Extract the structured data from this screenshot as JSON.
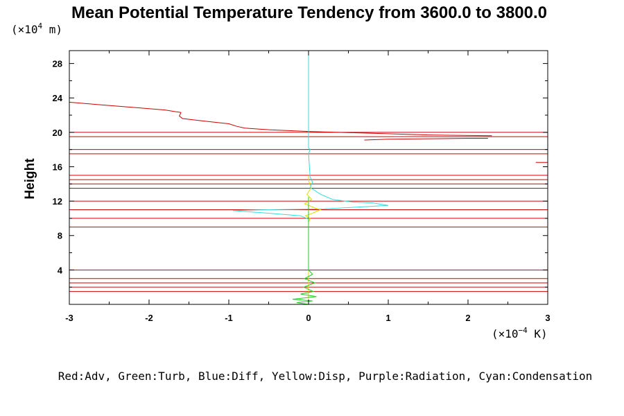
{
  "chart_data": {
    "type": "line",
    "title": "Mean Potential Temperature Tendency from 3600.0 to 3800.0",
    "ylabel": "Height",
    "y_scale_label": "(×10",
    "y_scale_exp": "4",
    "y_scale_unit": " m)",
    "x_scale_label": "(×10",
    "x_scale_exp": "−4",
    "x_scale_unit": " K)",
    "xlim": [
      -3,
      3
    ],
    "ylim": [
      0,
      29.5
    ],
    "x_ticks": [
      -3,
      -2,
      -1,
      0,
      1,
      2,
      3
    ],
    "x_tick_labels": [
      "-3",
      "-2",
      "-1",
      "0",
      "1",
      "2",
      "3"
    ],
    "y_ticks": [
      4,
      8,
      12,
      16,
      20,
      24,
      28
    ],
    "y_tick_labels": [
      "4",
      "8",
      "12",
      "16",
      "20",
      "24",
      "28"
    ],
    "legend": "Red:Adv, Green:Turb, Blue:Diff, Yellow:Disp, Purple:Radiation, Cyan:Condensation",
    "colors": {
      "adv": "#cc0000",
      "turb": "#22cc22",
      "diff": "#2244ff",
      "disp": "#dddd00",
      "cond": "#33dddd",
      "axis": "#000000"
    },
    "adv_horizontal_lines_y": [
      29.5,
      20.0,
      19.5,
      18.0,
      17.5,
      15.0,
      14.5,
      14.0,
      13.5,
      12.0,
      11.0,
      10.0,
      9.0,
      4.0,
      3.0,
      2.5,
      2.0,
      1.5
    ],
    "series": [
      {
        "name": "Red:Adv (profile)",
        "color": "#cc0000",
        "x": [
          -3.0,
          -2.6,
          -2.2,
          -1.8,
          -1.6,
          -1.62,
          -1.58,
          -1.3,
          -1.0,
          -0.9,
          -0.8,
          -0.5,
          0.0,
          1.5,
          2.3
        ],
        "y": [
          23.5,
          23.2,
          22.9,
          22.6,
          22.3,
          21.9,
          21.6,
          21.3,
          21.0,
          20.7,
          20.5,
          20.3,
          20.1,
          19.7,
          19.6
        ]
      },
      {
        "name": "Red:Adv (segment)",
        "color": "#cc0000",
        "x": [
          0.7,
          1.0,
          2.0,
          2.25
        ],
        "y": [
          19.1,
          19.2,
          19.3,
          19.3
        ]
      },
      {
        "name": "Red:Adv (edge)",
        "color": "#cc0000",
        "x": [
          2.85,
          3.0
        ],
        "y": [
          16.5,
          16.5
        ]
      },
      {
        "name": "Cyan:Condensation",
        "color": "#33dddd",
        "x": [
          0.0,
          0.0,
          0.02,
          0.0,
          0.02,
          0.05,
          0.02,
          0.15,
          0.3,
          0.55,
          0.8,
          1.0,
          0.6,
          0.2,
          -0.5,
          -0.95,
          -0.5,
          -0.1,
          0.0,
          0.0
        ],
        "y": [
          29.5,
          18.2,
          18.0,
          17.5,
          14.8,
          14.2,
          13.6,
          12.8,
          12.2,
          11.9,
          11.8,
          11.5,
          11.3,
          11.1,
          11.0,
          10.9,
          10.6,
          10.3,
          9.9,
          0.0
        ]
      },
      {
        "name": "Yellow:Disp",
        "color": "#dddd00",
        "x": [
          0.0,
          0.0,
          0.03,
          -0.02,
          0.04,
          -0.05,
          0.08,
          0.15,
          0.05,
          -0.04,
          0.02,
          0.0,
          0.0
        ],
        "y": [
          15.0,
          14.5,
          13.5,
          12.8,
          12.2,
          11.7,
          11.2,
          11.0,
          10.6,
          10.3,
          10.0,
          9.5,
          0.0
        ]
      },
      {
        "name": "Green:Turb",
        "color": "#22cc22",
        "x": [
          0.0,
          0.0,
          0.05,
          -0.05,
          0.08,
          -0.06,
          0.06,
          -0.1,
          0.1,
          -0.2,
          0.05,
          -0.15,
          0.0
        ],
        "y": [
          12.5,
          4.0,
          3.5,
          3.0,
          2.5,
          2.0,
          1.5,
          1.2,
          0.9,
          0.6,
          0.4,
          0.2,
          0.0
        ]
      }
    ]
  }
}
